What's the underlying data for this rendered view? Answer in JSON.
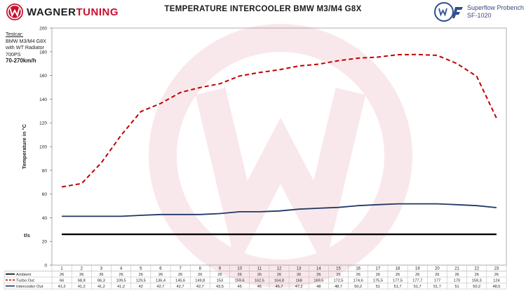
{
  "brand": {
    "text_a": "WAGNER",
    "text_b": "TUNING",
    "logo_icon": "wt-logo-icon"
  },
  "product": {
    "name": "Superflow Probench",
    "code": "SF-1020",
    "badge_icon": "wt-badge-icon"
  },
  "testcar": {
    "label": "Testcar:",
    "lines": [
      "BMW M3/M4 G8X",
      "with WT Radiator",
      "700PS"
    ],
    "range": "70-270km/h"
  },
  "chart_data": {
    "type": "line",
    "title": "TEMPERATURE INTERCOOLER BMW M3/M4 G8X",
    "xlabel": "t/s",
    "ylabel": "Temperature in °C",
    "ylim": [
      0,
      200
    ],
    "yticks": [
      0,
      20,
      40,
      60,
      80,
      100,
      120,
      140,
      160,
      180,
      200
    ],
    "grid": false,
    "legend": "table-bottom",
    "categories": [
      "1",
      "2",
      "3",
      "4",
      "5",
      "6",
      "7",
      "8",
      "9",
      "10",
      "11",
      "12",
      "13",
      "14",
      "15",
      "16",
      "17",
      "18",
      "19",
      "20",
      "21",
      "22",
      "23"
    ],
    "series": [
      {
        "name": "Ambient",
        "color": "#000000",
        "style": "solid",
        "values": [
          26,
          26,
          26,
          26,
          26,
          26,
          26,
          26,
          26,
          26,
          26,
          26,
          26,
          26,
          26,
          26,
          26,
          26,
          26,
          26,
          26,
          26,
          26
        ],
        "labels": [
          "26",
          "26",
          "26",
          "26",
          "26",
          "26",
          "26",
          "26",
          "26",
          "26",
          "26",
          "26",
          "26",
          "26",
          "26",
          "26",
          "26",
          "26",
          "26",
          "26",
          "26",
          "26",
          "26"
        ]
      },
      {
        "name": "Turbo Out",
        "color": "#c00000",
        "style": "dashed",
        "values": [
          66,
          68.8,
          86.3,
          109.5,
          129.5,
          136.4,
          145.6,
          149.8,
          153,
          159.6,
          162.5,
          164.8,
          168,
          169.5,
          172.5,
          174.6,
          175.5,
          177.5,
          177.7,
          177,
          170,
          159.3,
          124
        ],
        "labels": [
          "66",
          "68,8",
          "86,3",
          "109,5",
          "129,5",
          "136,4",
          "145,6",
          "149,8",
          "153",
          "159,6",
          "162,5",
          "164,8",
          "168",
          "169,5",
          "172,5",
          "174,6",
          "175,5",
          "177,5",
          "177,7",
          "177",
          "170",
          "159,3",
          "124"
        ]
      },
      {
        "name": "Intercooler Out",
        "color": "#1f3864",
        "style": "solid",
        "values": [
          41.2,
          41.2,
          41.2,
          41.2,
          42,
          42.7,
          42.7,
          42.7,
          43.5,
          45,
          45,
          45.7,
          47.2,
          48,
          48.7,
          50.2,
          51,
          51.7,
          51.7,
          51.7,
          51,
          50.2,
          48.5
        ],
        "labels": [
          "41,2",
          "41,2",
          "41,2",
          "41,2",
          "42",
          "42,7",
          "42,7",
          "42,7",
          "43,5",
          "45",
          "45",
          "45,7",
          "47,2",
          "48",
          "48,7",
          "50,2",
          "51",
          "51,7",
          "51,7",
          "51,7",
          "51",
          "50,2",
          "48,5"
        ]
      }
    ]
  }
}
